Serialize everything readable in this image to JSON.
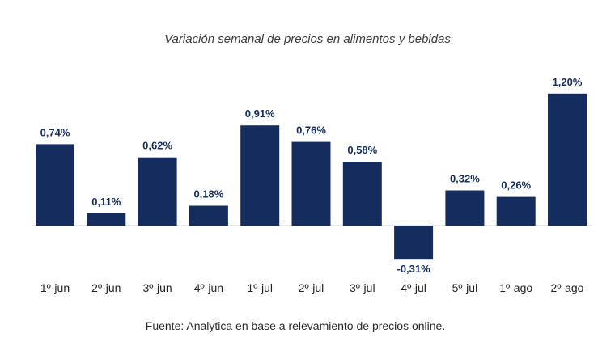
{
  "chart_data": {
    "type": "bar",
    "title": "Variación semanal de precios en alimentos y bebidas",
    "categories": [
      "1º-jun",
      "2º-jun",
      "3º-jun",
      "4º-jun",
      "1º-jul",
      "2º-jul",
      "3º-jul",
      "4º-jul",
      "5º-jul",
      "1º-ago",
      "2º-ago"
    ],
    "values": [
      0.74,
      0.11,
      0.62,
      0.18,
      0.91,
      0.76,
      0.58,
      -0.31,
      0.32,
      0.26,
      1.2
    ],
    "data_labels": [
      "0,74%",
      "0,11%",
      "0,62%",
      "0,18%",
      "0,91%",
      "0,76%",
      "0,58%",
      "-0,31%",
      "0,32%",
      "0,26%",
      "1,20%"
    ],
    "xlabel": "",
    "ylabel": "",
    "grid": false,
    "colors": {
      "bar": "#142d5e",
      "label": "#142d5e",
      "tick": "#222222",
      "baseline": "#d0d0d0"
    }
  },
  "source": "Fuente: Analytica en base a relevamiento de precios online."
}
